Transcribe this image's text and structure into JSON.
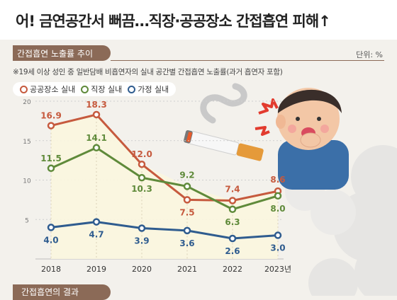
{
  "headline": "어! 금연공간서 뻐끔…직장·공공장소 간접흡연 피해↑",
  "section_title": "간접흡연 노출률 추이",
  "unit": "단위: %",
  "note": "※19세 이상 성인 중 일반담배 비흡연자의 실내 공간별 간접흡연 노출률(과거 흡연자 포함)",
  "next_section_title": "간접흡연의 결과",
  "chart_data": {
    "type": "line",
    "title": "",
    "xlabel": "",
    "ylabel": "",
    "categories": [
      "2018",
      "2019",
      "2020",
      "2021",
      "2022",
      "2023년"
    ],
    "ylim": [
      0,
      20
    ],
    "yticks": [
      5,
      10,
      15,
      20
    ],
    "grid": true,
    "legend": "top-left",
    "series": [
      {
        "name": "공공장소 실내",
        "color": "#c65a3e",
        "values": [
          16.9,
          18.3,
          12.0,
          7.5,
          7.4,
          8.6
        ]
      },
      {
        "name": "직장 실내",
        "color": "#5f8a3a",
        "values": [
          11.5,
          14.1,
          10.3,
          9.2,
          6.3,
          8.0
        ]
      },
      {
        "name": "가정 실내",
        "color": "#2f5c8f",
        "values": [
          4.0,
          4.7,
          3.9,
          3.6,
          2.6,
          3.0
        ]
      }
    ]
  },
  "colors": {
    "accent": "#8b6a57",
    "area_fill": "#fbf6df"
  },
  "icons": [
    "cigarette-icon",
    "smoke-icon",
    "coughing-person-icon",
    "cough-burst-icon"
  ]
}
